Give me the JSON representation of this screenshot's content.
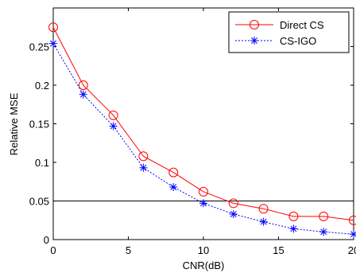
{
  "chart_data": {
    "type": "line",
    "title": "",
    "xlabel": "CNR(dB)",
    "ylabel": "Relative MSE",
    "xlim": [
      0,
      20
    ],
    "ylim": [
      0,
      0.3
    ],
    "x_ticks": [
      0,
      5,
      10,
      15,
      20
    ],
    "y_ticks": [
      0,
      0.05,
      0.1,
      0.15,
      0.2,
      0.25
    ],
    "x_tick_labels": [
      "0",
      "5",
      "10",
      "15",
      "20"
    ],
    "y_tick_labels": [
      "0",
      "0.05",
      "0.1",
      "0.15",
      "0.2",
      "0.25"
    ],
    "grid": false,
    "reference_line": {
      "y": 0.05
    },
    "legend_position": "top-right",
    "x": [
      0,
      2,
      4,
      6,
      8,
      10,
      12,
      14,
      16,
      18,
      20
    ],
    "series": [
      {
        "name": "Direct CS",
        "color": "#ff0000",
        "line_style": "solid",
        "marker": "circle",
        "values": [
          0.275,
          0.2,
          0.161,
          0.108,
          0.087,
          0.062,
          0.047,
          0.04,
          0.03,
          0.03,
          0.025
        ]
      },
      {
        "name": "CS-IGO",
        "color": "#0000ff",
        "line_style": "dotted",
        "marker": "asterisk",
        "values": [
          0.254,
          0.188,
          0.147,
          0.093,
          0.068,
          0.047,
          0.033,
          0.023,
          0.014,
          0.01,
          0.007
        ]
      }
    ]
  }
}
